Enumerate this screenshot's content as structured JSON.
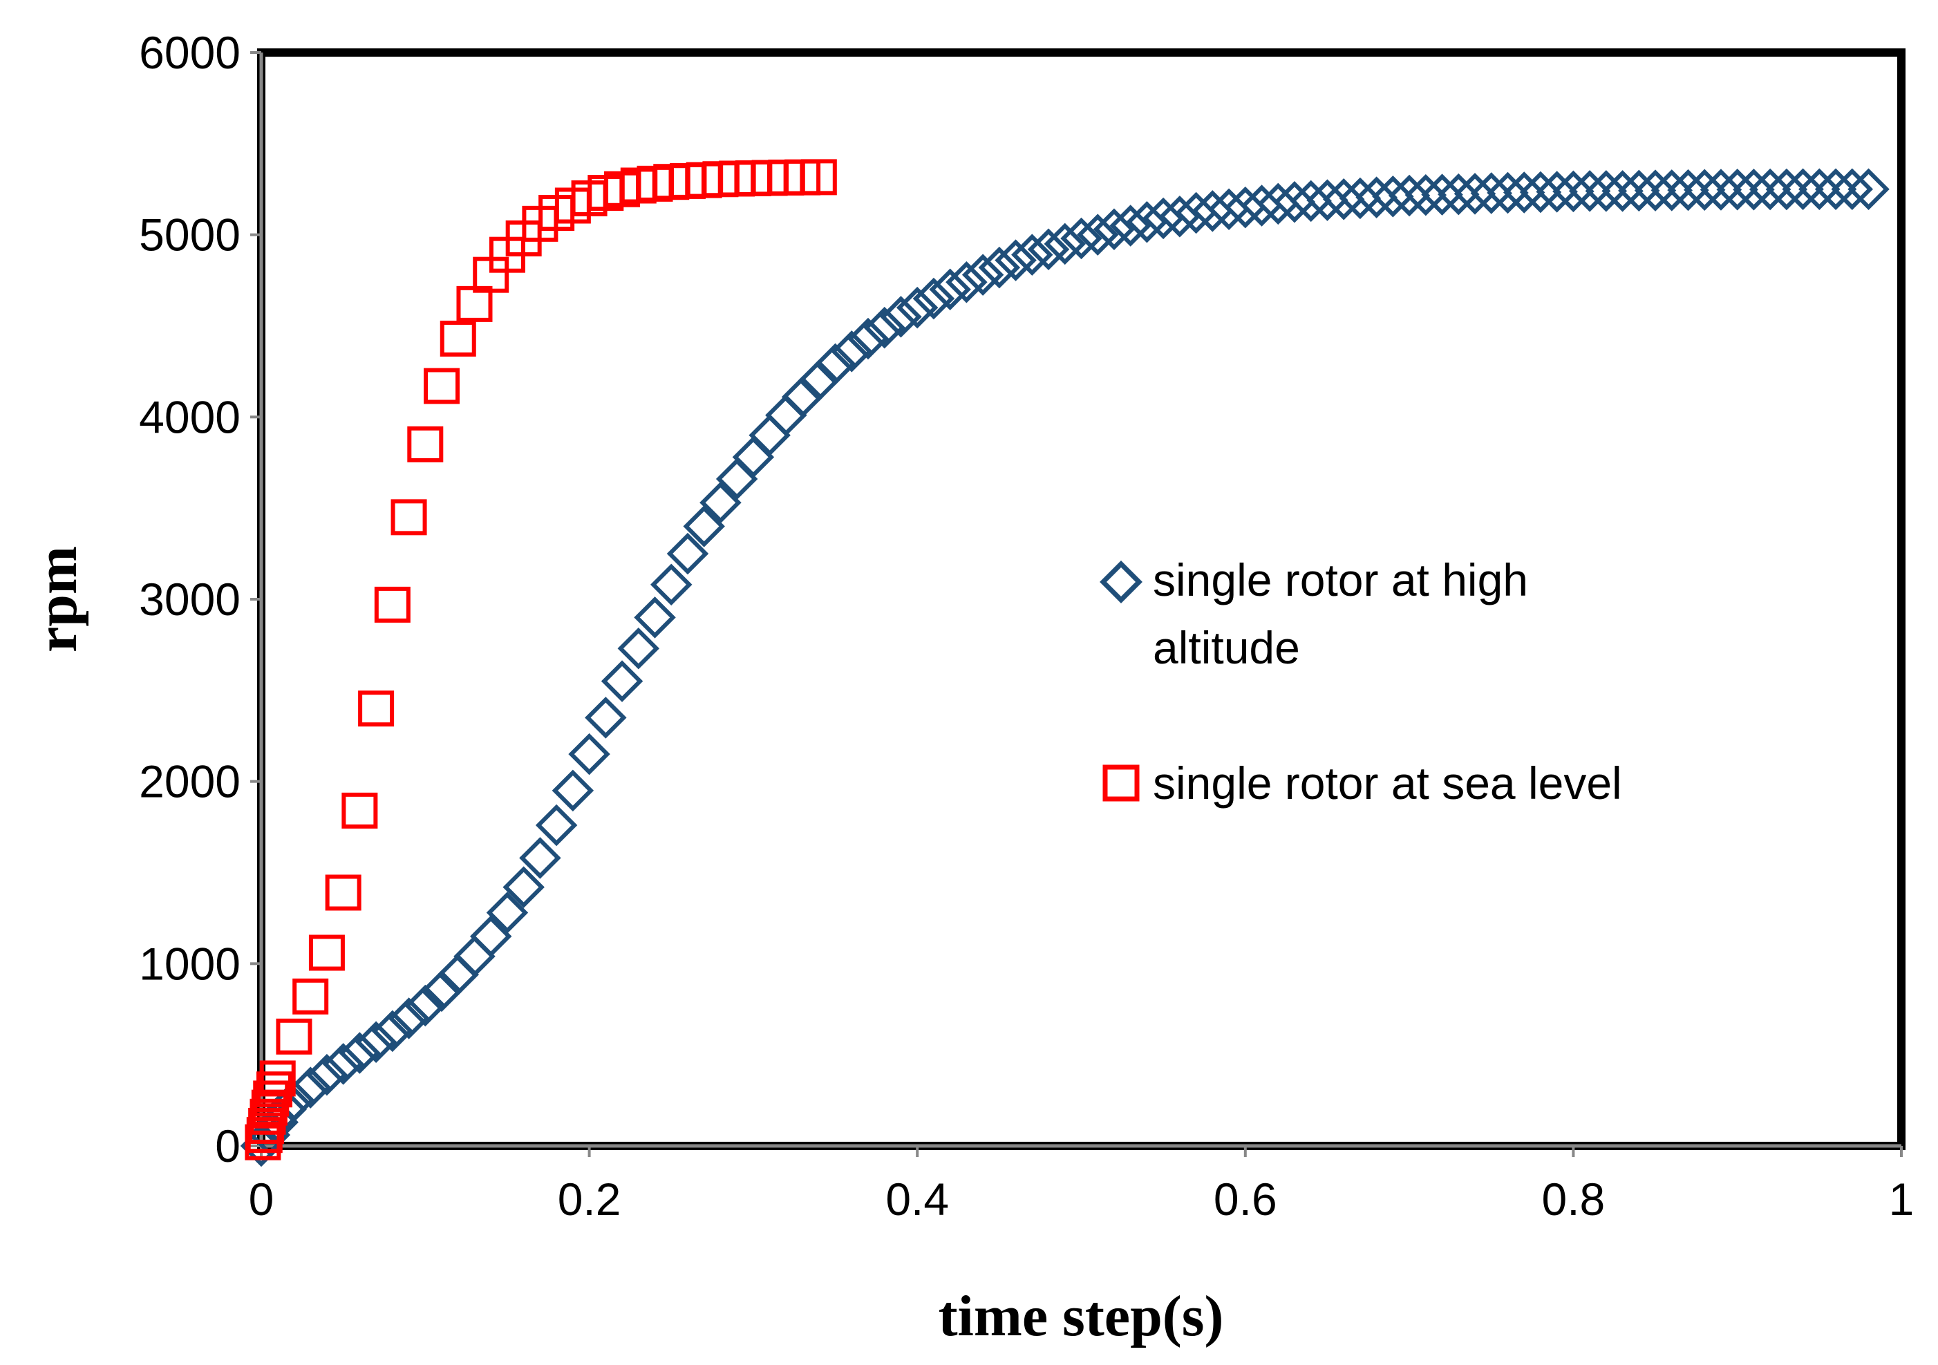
{
  "chart_data": {
    "type": "scatter",
    "title": "",
    "xlabel": "time step(s)",
    "ylabel": "rpm",
    "xlim": [
      0,
      1
    ],
    "ylim": [
      0,
      6000
    ],
    "x_ticks": [
      "0",
      "0.2",
      "0.4",
      "0.6",
      "0.8",
      "1"
    ],
    "y_ticks": [
      "0",
      "1000",
      "2000",
      "3000",
      "4000",
      "5000",
      "6000"
    ],
    "grid": false,
    "legend_position": "right-center",
    "series": [
      {
        "name": "single rotor at high altitude",
        "legend_lines": [
          "single rotor at high",
          "altitude"
        ],
        "marker": "diamond",
        "color": "#1f4e79",
        "x": [
          0,
          0.005,
          0.01,
          0.015,
          0.02,
          0.03,
          0.04,
          0.05,
          0.06,
          0.07,
          0.08,
          0.09,
          0.1,
          0.11,
          0.12,
          0.13,
          0.14,
          0.15,
          0.16,
          0.17,
          0.18,
          0.19,
          0.2,
          0.21,
          0.22,
          0.23,
          0.24,
          0.25,
          0.26,
          0.27,
          0.28,
          0.29,
          0.3,
          0.31,
          0.32,
          0.33,
          0.34,
          0.35,
          0.36,
          0.37,
          0.38,
          0.39,
          0.4,
          0.41,
          0.42,
          0.43,
          0.44,
          0.45,
          0.46,
          0.47,
          0.48,
          0.49,
          0.5,
          0.51,
          0.52,
          0.53,
          0.54,
          0.55,
          0.56,
          0.57,
          0.58,
          0.59,
          0.6,
          0.61,
          0.62,
          0.63,
          0.64,
          0.65,
          0.66,
          0.67,
          0.68,
          0.69,
          0.7,
          0.71,
          0.72,
          0.73,
          0.74,
          0.75,
          0.76,
          0.77,
          0.78,
          0.79,
          0.8,
          0.81,
          0.82,
          0.83,
          0.84,
          0.85,
          0.86,
          0.87,
          0.88,
          0.89,
          0.9,
          0.91,
          0.92,
          0.93,
          0.94,
          0.95,
          0.96,
          0.97,
          0.98
        ],
        "y": [
          0,
          60,
          130,
          200,
          250,
          320,
          390,
          450,
          510,
          570,
          630,
          700,
          770,
          850,
          940,
          1040,
          1150,
          1280,
          1420,
          1580,
          1760,
          1950,
          2150,
          2350,
          2550,
          2730,
          2900,
          3080,
          3250,
          3400,
          3530,
          3660,
          3780,
          3900,
          4010,
          4110,
          4200,
          4290,
          4360,
          4430,
          4490,
          4550,
          4600,
          4650,
          4700,
          4740,
          4780,
          4820,
          4860,
          4890,
          4920,
          4950,
          4980,
          5000,
          5030,
          5050,
          5070,
          5090,
          5100,
          5120,
          5130,
          5140,
          5150,
          5160,
          5170,
          5180,
          5185,
          5190,
          5195,
          5200,
          5205,
          5210,
          5215,
          5218,
          5220,
          5222,
          5225,
          5228,
          5230,
          5232,
          5234,
          5236,
          5238,
          5240,
          5240,
          5240,
          5242,
          5243,
          5244,
          5245,
          5246,
          5247,
          5248,
          5248,
          5249,
          5249,
          5250,
          5250,
          5250,
          5250,
          5250
        ]
      },
      {
        "name": "single rotor at sea level",
        "legend_lines": [
          "single rotor at sea level"
        ],
        "marker": "square",
        "color": "#ff0000",
        "x": [
          0.001,
          0.002,
          0.003,
          0.004,
          0.005,
          0.006,
          0.008,
          0.01,
          0.02,
          0.03,
          0.04,
          0.05,
          0.06,
          0.07,
          0.08,
          0.09,
          0.1,
          0.11,
          0.12,
          0.13,
          0.14,
          0.15,
          0.16,
          0.17,
          0.18,
          0.19,
          0.2,
          0.21,
          0.22,
          0.23,
          0.24,
          0.25,
          0.26,
          0.27,
          0.28,
          0.29,
          0.3,
          0.31,
          0.32,
          0.33,
          0.34
        ],
        "y": [
          20,
          60,
          110,
          160,
          210,
          260,
          310,
          370,
          600,
          820,
          1060,
          1390,
          1840,
          2400,
          2970,
          3450,
          3850,
          4170,
          4430,
          4620,
          4780,
          4890,
          4980,
          5060,
          5120,
          5160,
          5200,
          5230,
          5250,
          5270,
          5280,
          5290,
          5295,
          5300,
          5305,
          5308,
          5310,
          5312,
          5314,
          5315,
          5316
        ]
      }
    ]
  }
}
